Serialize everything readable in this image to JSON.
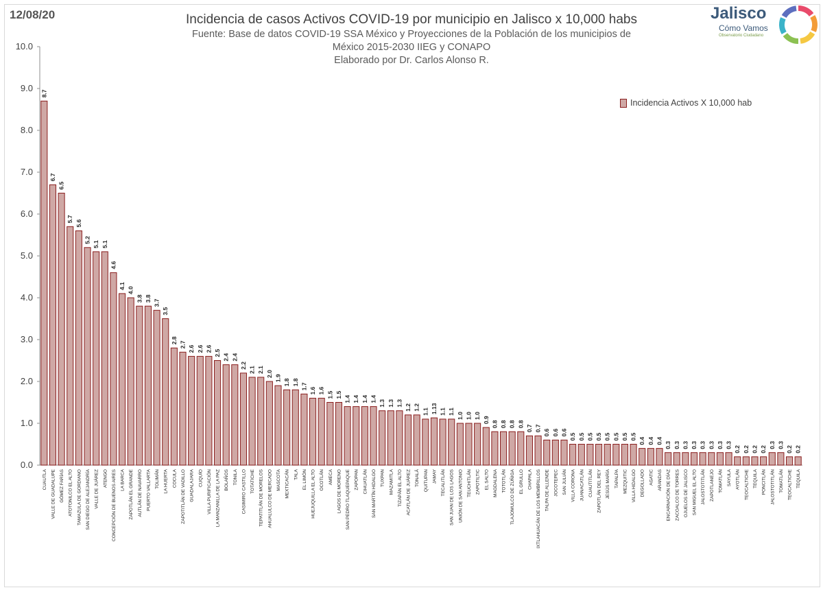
{
  "date": "12/08/20",
  "title": "Incidencia de casos Activos COVID-19 por municipio en Jalisco x 10,000 habs",
  "subtitle_lines": [
    "Fuente: Base de datos COVID-19 SSA México y Proyecciones de la Población de los municipios de",
    "México 2015-2030 IIEG y CONAPO",
    "Elaborado por Dr. Carlos Alonso R."
  ],
  "logo": {
    "name": "Jalisco",
    "tagline": "Cómo Vamos",
    "subtagline": "Observatorio Ciudadano",
    "ring_colors": [
      "#e94b6b",
      "#f39c38",
      "#f5c842",
      "#8cc152",
      "#3bb3c9",
      "#5d6fbf"
    ]
  },
  "colors": {
    "bar_fill": "#cfa8a5",
    "bar_stroke": "#8a1d1d",
    "axis": "#8c8c8c"
  },
  "chart_data": {
    "type": "bar",
    "legend": "Incidencia Activos X 10,000 hab",
    "legend_position": "top-right",
    "grid": false,
    "ylim": [
      0,
      10
    ],
    "yticks": [
      "0.0",
      "1.0",
      "2.0",
      "3.0",
      "4.0",
      "5.0",
      "6.0",
      "7.0",
      "8.0",
      "9.0",
      "10.0"
    ],
    "categories": [
      "CUAUTLA",
      "VALLE DE GUADALUPE",
      "GÓMEZ FARÍAS",
      "ATOTONILCO EL ALTO",
      "TAMAZULA DE GORDIANO",
      "SAN DIEGO DE ALEJANDRÍA",
      "VALLE DE JUÁREZ",
      "ATENGO",
      "CONCEPCIÓN DE BUENOS AIRES",
      "LA BARCA",
      "ZAPOTLÁN EL GRANDE",
      "AUTLÁN DE NAVARRO",
      "PUERTO VALLARTA",
      "TOLIMÁN",
      "LA HUERTA",
      "COCULA",
      "ZAPOTITLÁN DE VADILLO",
      "GUADALAJARA",
      "CUQUÍO",
      "VILLA PURIFICACIÓN",
      "LA MANZANILLA DE LA PAZ",
      "BOLAÑOS",
      "TONILA",
      "CASIMIRO CASTILLO",
      "TOTATICHE",
      "TEPATITLÁN DE MORELOS",
      "AHUALULCO DE MERCADO",
      "MASCOTA",
      "MEXTICACÁN",
      "TALA",
      "EL LIMÓN",
      "HUEJUQUILLA EL ALTO",
      "OCOTLÁN",
      "AMECA",
      "LAGOS DE MORENO",
      "SAN PEDRO TLAQUEPAQUE",
      "ZAPOPAN",
      "CIHUATLÁN",
      "SAN MARTÍN HIDALGO",
      "TUXPAN",
      "MAZAMITLA",
      "TIZAPÁN EL ALTO",
      "ACATLÁN DE JUÁREZ",
      "TONALÁ",
      "QUITUPAN",
      "JAMAY",
      "TECALITLÁN",
      "SAN JUAN DE LOS LAGOS",
      "UNIÓN DE SAN ANTONIO",
      "TEUCHITLÁN",
      "ZAPOTILTIC",
      "EL SALTO",
      "MAGDALENA",
      "TOTOTLÁN",
      "TLAJOMULCO DE ZÚÑIGA",
      "EL GRULLO",
      "CHAPALA",
      "IXTLAHUACÁN DE LOS MEMBRILLOS",
      "TALPA DE ALLENDE",
      "JOCOTEPEC",
      "SAN JULIÁN",
      "VILLA CORONA",
      "JUANACATLÁN",
      "CUAUTITLÁN",
      "ZAPOTLÁN DEL REY",
      "JESÚS MARÍA",
      "TAPALPA",
      "MEZQUITIC",
      "VILLA HIDALGO",
      "DEGOLLADO",
      "AGATIC",
      "ARANDAS",
      "ENCARNACIÓN DE DÍAZ",
      "ZACOALCO DE TORRES",
      "OJUELOS DE JALISCO",
      "SAN MIGUEL EL ALTO",
      "JALOSTOTITLÁN",
      "ZAPOTLANEJO",
      "TOMATLÁN",
      "SAYULA",
      "AYOTLÁN",
      "TEOCALTICHE",
      "TEQUILA",
      "PONCITLÁN",
      "JALOSTOTITLÁN",
      "TOMATLÁN",
      "TEOCALTICHE",
      "TEQUILA"
    ],
    "values": [
      8.7,
      6.7,
      6.5,
      5.7,
      5.6,
      5.2,
      5.1,
      5.1,
      4.6,
      4.1,
      4.0,
      3.8,
      3.8,
      3.7,
      3.5,
      2.8,
      2.7,
      2.6,
      2.6,
      2.6,
      2.5,
      2.4,
      2.4,
      2.2,
      2.1,
      2.1,
      2.0,
      1.9,
      1.8,
      1.8,
      1.7,
      1.6,
      1.6,
      1.5,
      1.5,
      1.4,
      1.4,
      1.4,
      1.4,
      1.3,
      1.3,
      1.3,
      1.2,
      1.2,
      1.1,
      1.13,
      1.1,
      1.1,
      1.0,
      1.0,
      1.0,
      0.9,
      0.8,
      0.8,
      0.8,
      0.8,
      0.7,
      0.7,
      0.6,
      0.6,
      0.6,
      0.5,
      0.5,
      0.5,
      0.5,
      0.5,
      0.5,
      0.5,
      0.5,
      0.4,
      0.4,
      0.4,
      0.3,
      0.3,
      0.3,
      0.3,
      0.3,
      0.3,
      0.3,
      0.3,
      0.2,
      0.2,
      0.2,
      0.2,
      0.3,
      0.3,
      0.2,
      0.2
    ],
    "value_labels": [
      "8.7",
      "6.7",
      "6.5",
      "5.7",
      "5.6",
      "5.2",
      "5.1",
      "5.1",
      "4.6",
      "4.1",
      "4.0",
      "3.8",
      "3.8",
      "3.7",
      "3.5",
      "2.8",
      "2.7",
      "2.6",
      "2.6",
      "2.6",
      "2.5",
      "2.4",
      "2.4",
      "2.2",
      "2.1",
      "2.1",
      "2.0",
      "1.9",
      "1.8",
      "1.8",
      "1.7",
      "1.6",
      "1.6",
      "1.5",
      "1.5",
      "1.4",
      "1.4",
      "1.4",
      "1.4",
      "1.3",
      "1.3",
      "1.3",
      "1.2",
      "1.2",
      "1.1",
      "1.13",
      "1.1",
      "1.1",
      "1.0",
      "1.0",
      "1.0",
      "0.9",
      "0.8",
      "0.8",
      "0.8",
      "0.8",
      "0.7",
      "0.7",
      "0.6",
      "0.6",
      "0.6",
      "0.5",
      "0.5",
      "0.5",
      "0.5",
      "0.5",
      "0.5",
      "0.5",
      "0.5",
      "0.4",
      "0.4",
      "0.4",
      "0.3",
      "0.3",
      "0.3",
      "0.3",
      "0.3",
      "0.3",
      "0.3",
      "0.3",
      "0.2",
      "0.2",
      "0.2",
      "0.2",
      "0.3",
      "0.3",
      "0.2",
      "0.2"
    ]
  }
}
